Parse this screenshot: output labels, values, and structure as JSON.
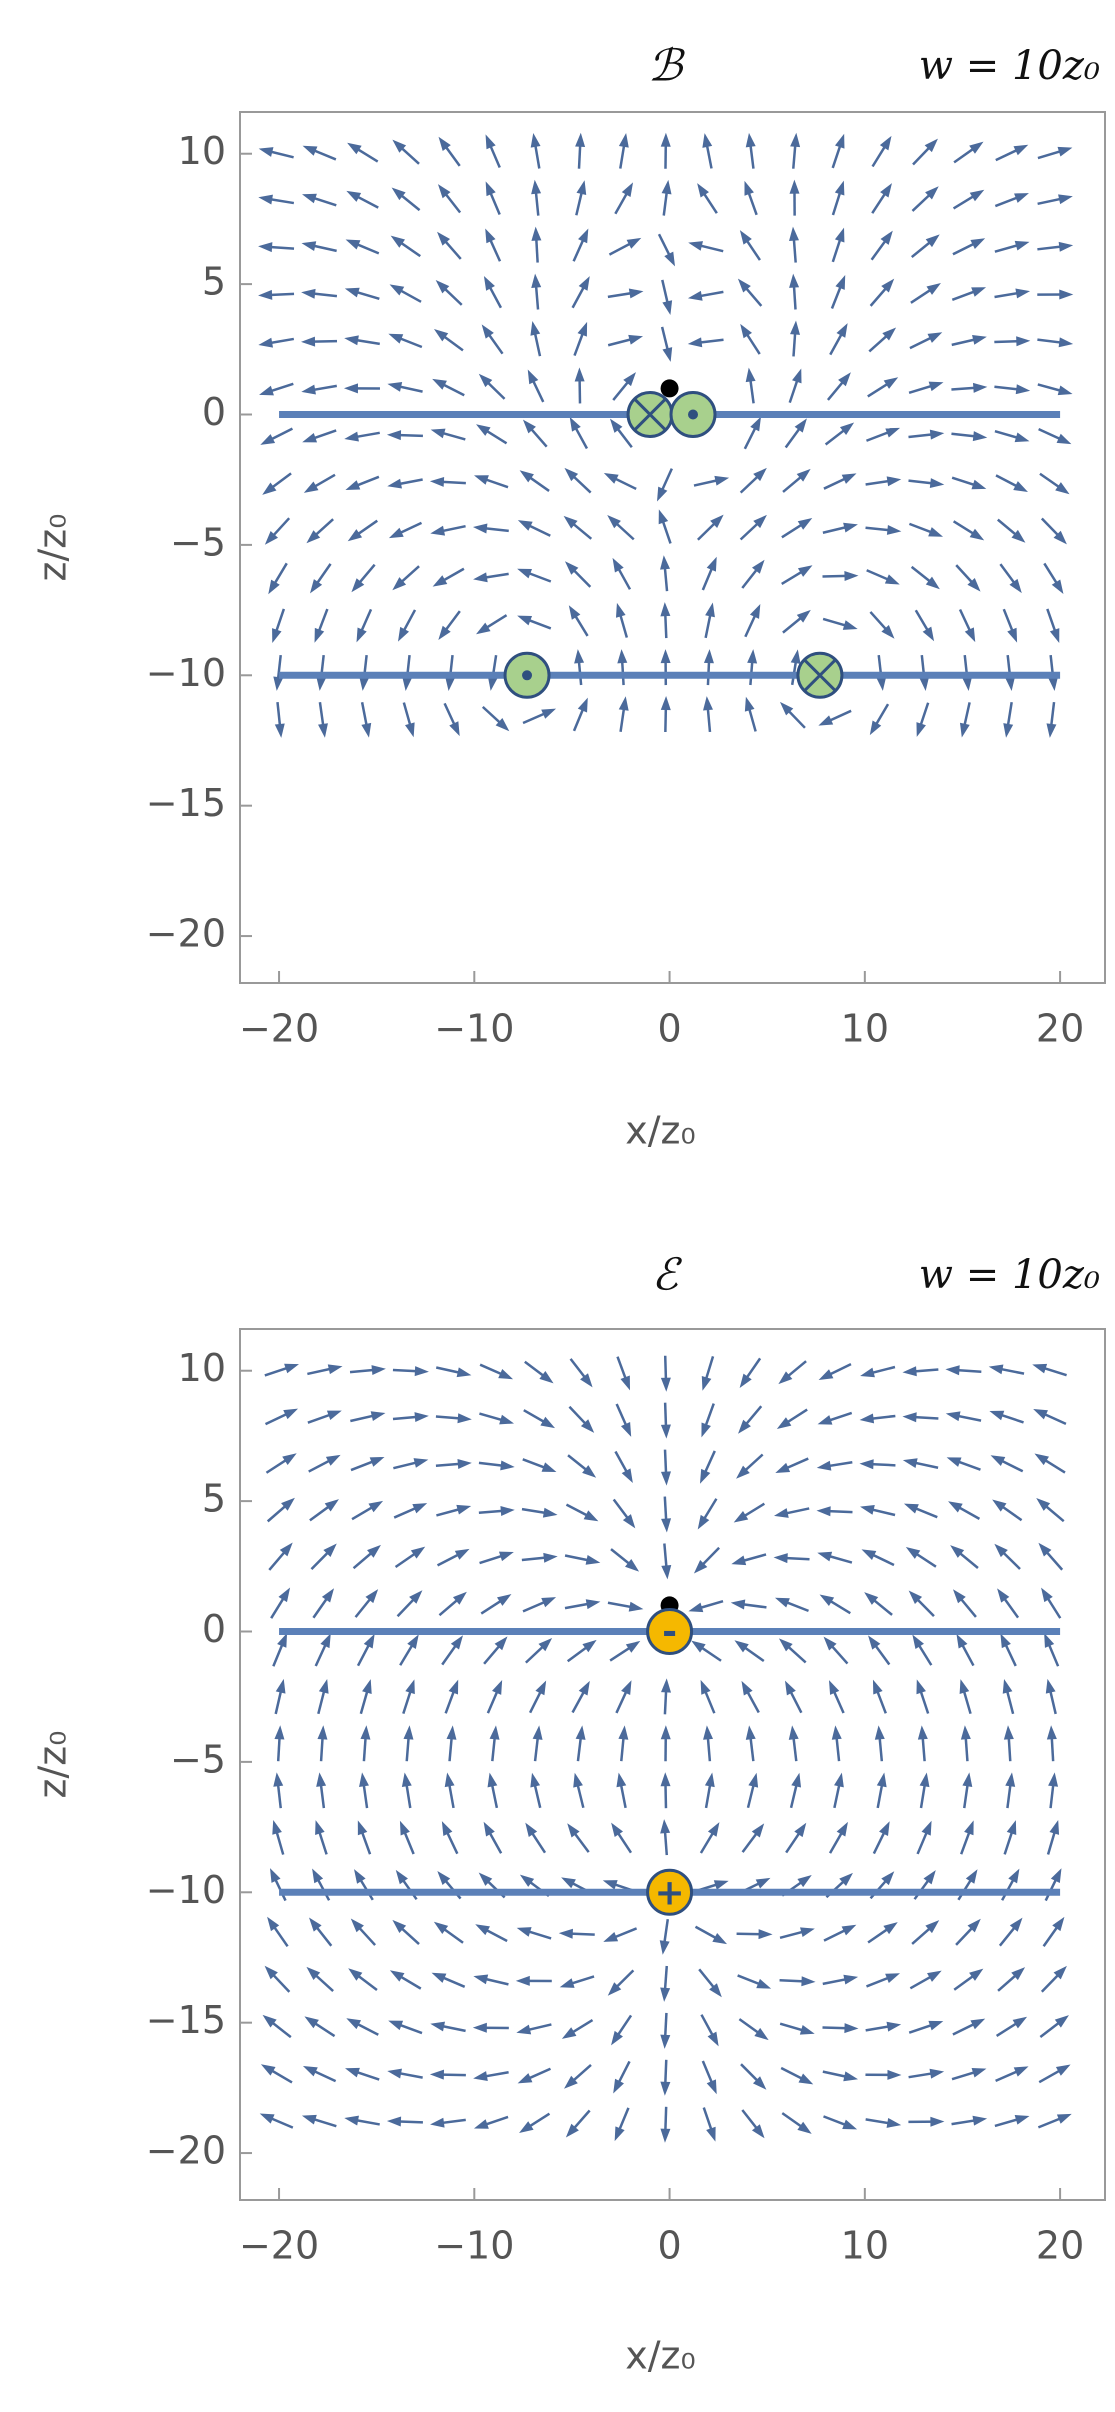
{
  "chart_data": [
    {
      "type": "streamplot",
      "title": "ℬ",
      "subtitle": "w = 10z₀",
      "xlabel": "x/z₀",
      "ylabel": "z/z₀",
      "xlim": [
        -22,
        22.3
      ],
      "ylim": [
        -21.8,
        11.6
      ],
      "xticks": [
        {
          "value": -20,
          "label": "−20"
        },
        {
          "value": -10,
          "label": "−10"
        },
        0,
        10,
        20
      ],
      "yticks": [
        10,
        5,
        0,
        {
          "value": -5,
          "label": "−5"
        },
        {
          "value": -10,
          "label": "−10"
        },
        {
          "value": -15,
          "label": "−15"
        },
        {
          "value": -20,
          "label": "−20"
        }
      ],
      "plates": [
        0,
        -10
      ],
      "plate_x": [
        -20,
        20
      ],
      "color": "#4b6a9b",
      "plate_color": "#5b80b8",
      "field_region": {
        "x": [
          -20,
          20
        ],
        "z": [
          -12,
          10
        ]
      },
      "probe": {
        "x": 0,
        "z": 1
      },
      "sources": [
        {
          "x": -1,
          "z": 0,
          "current": -1
        },
        {
          "x": 1.2,
          "z": 0,
          "current": 1
        },
        {
          "x": -7.3,
          "z": -10,
          "current": 1
        },
        {
          "x": 7.7,
          "z": -10,
          "current": -1
        }
      ],
      "source_color": "#a8d08d"
    },
    {
      "type": "streamplot",
      "title": "ℰ",
      "subtitle": "w = 10z₀",
      "xlabel": "x/z₀",
      "ylabel": "z/z₀",
      "xlim": [
        -22,
        22.3
      ],
      "ylim": [
        -21.8,
        11.6
      ],
      "xticks": [
        {
          "value": -20,
          "label": "−20"
        },
        {
          "value": -10,
          "label": "−10"
        },
        0,
        10,
        20
      ],
      "yticks": [
        10,
        5,
        0,
        {
          "value": -5,
          "label": "−5"
        },
        {
          "value": -10,
          "label": "−10"
        },
        {
          "value": -15,
          "label": "−15"
        },
        {
          "value": -20,
          "label": "−20"
        }
      ],
      "plates": [
        0,
        -10
      ],
      "plate_x": [
        -20,
        20
      ],
      "color": "#4b6a9b",
      "plate_color": "#5b80b8",
      "field_region": {
        "x": [
          -20,
          20
        ],
        "z": [
          -20,
          10
        ]
      },
      "probe": {
        "x": 0,
        "z": 1
      },
      "sources": [
        {
          "x": 0,
          "z": 0,
          "charge": -1,
          "label": "-"
        },
        {
          "x": 0,
          "z": -10,
          "charge": 1,
          "label": "+"
        }
      ],
      "source_color": "#f5b800"
    }
  ]
}
